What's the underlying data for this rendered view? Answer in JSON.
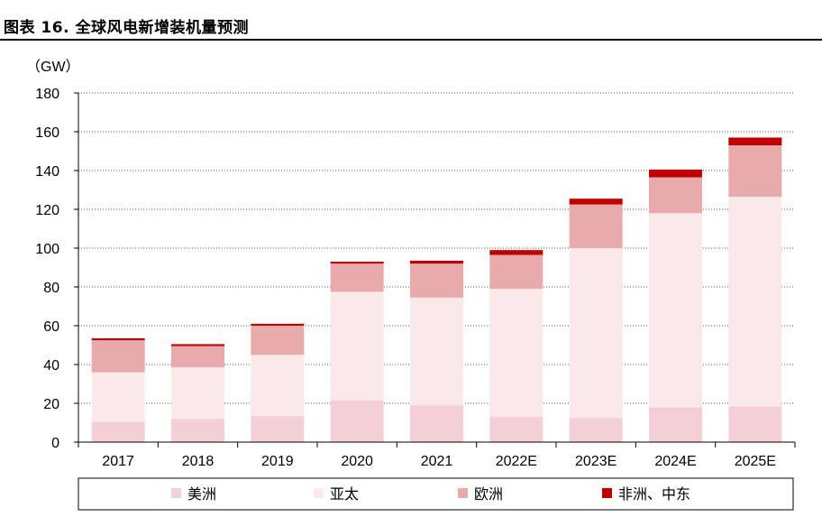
{
  "figure_title": "图表 16. 全球风电新增装机量预测",
  "chart_data": {
    "type": "bar",
    "stacked": true,
    "unit_label": "（GW）",
    "categories": [
      "2017",
      "2018",
      "2019",
      "2020",
      "2021",
      "2022E",
      "2023E",
      "2024E",
      "2025E"
    ],
    "ylim": [
      0,
      180
    ],
    "yticks": [
      0,
      20,
      40,
      60,
      80,
      100,
      120,
      140,
      160,
      180
    ],
    "grid": true,
    "legend_position": "bottom",
    "series": [
      {
        "name": "美洲",
        "color": "#f5cfd6",
        "values": [
          10.5,
          12,
          13.5,
          21.5,
          19,
          13,
          12.5,
          18,
          18.5
        ]
      },
      {
        "name": "亚太",
        "color": "#fbe9ea",
        "values": [
          25.5,
          26.5,
          31.5,
          56,
          55.5,
          66,
          87.5,
          100,
          108
        ]
      },
      {
        "name": "欧洲",
        "color": "#e8aaab",
        "values": [
          16.5,
          11,
          15,
          14.5,
          17.5,
          17.5,
          22.5,
          18.5,
          26.5
        ]
      },
      {
        "name": "非洲、中东",
        "color": "#c00000",
        "values": [
          1,
          1,
          1,
          1,
          1.5,
          2.5,
          3,
          4,
          4
        ]
      }
    ]
  }
}
